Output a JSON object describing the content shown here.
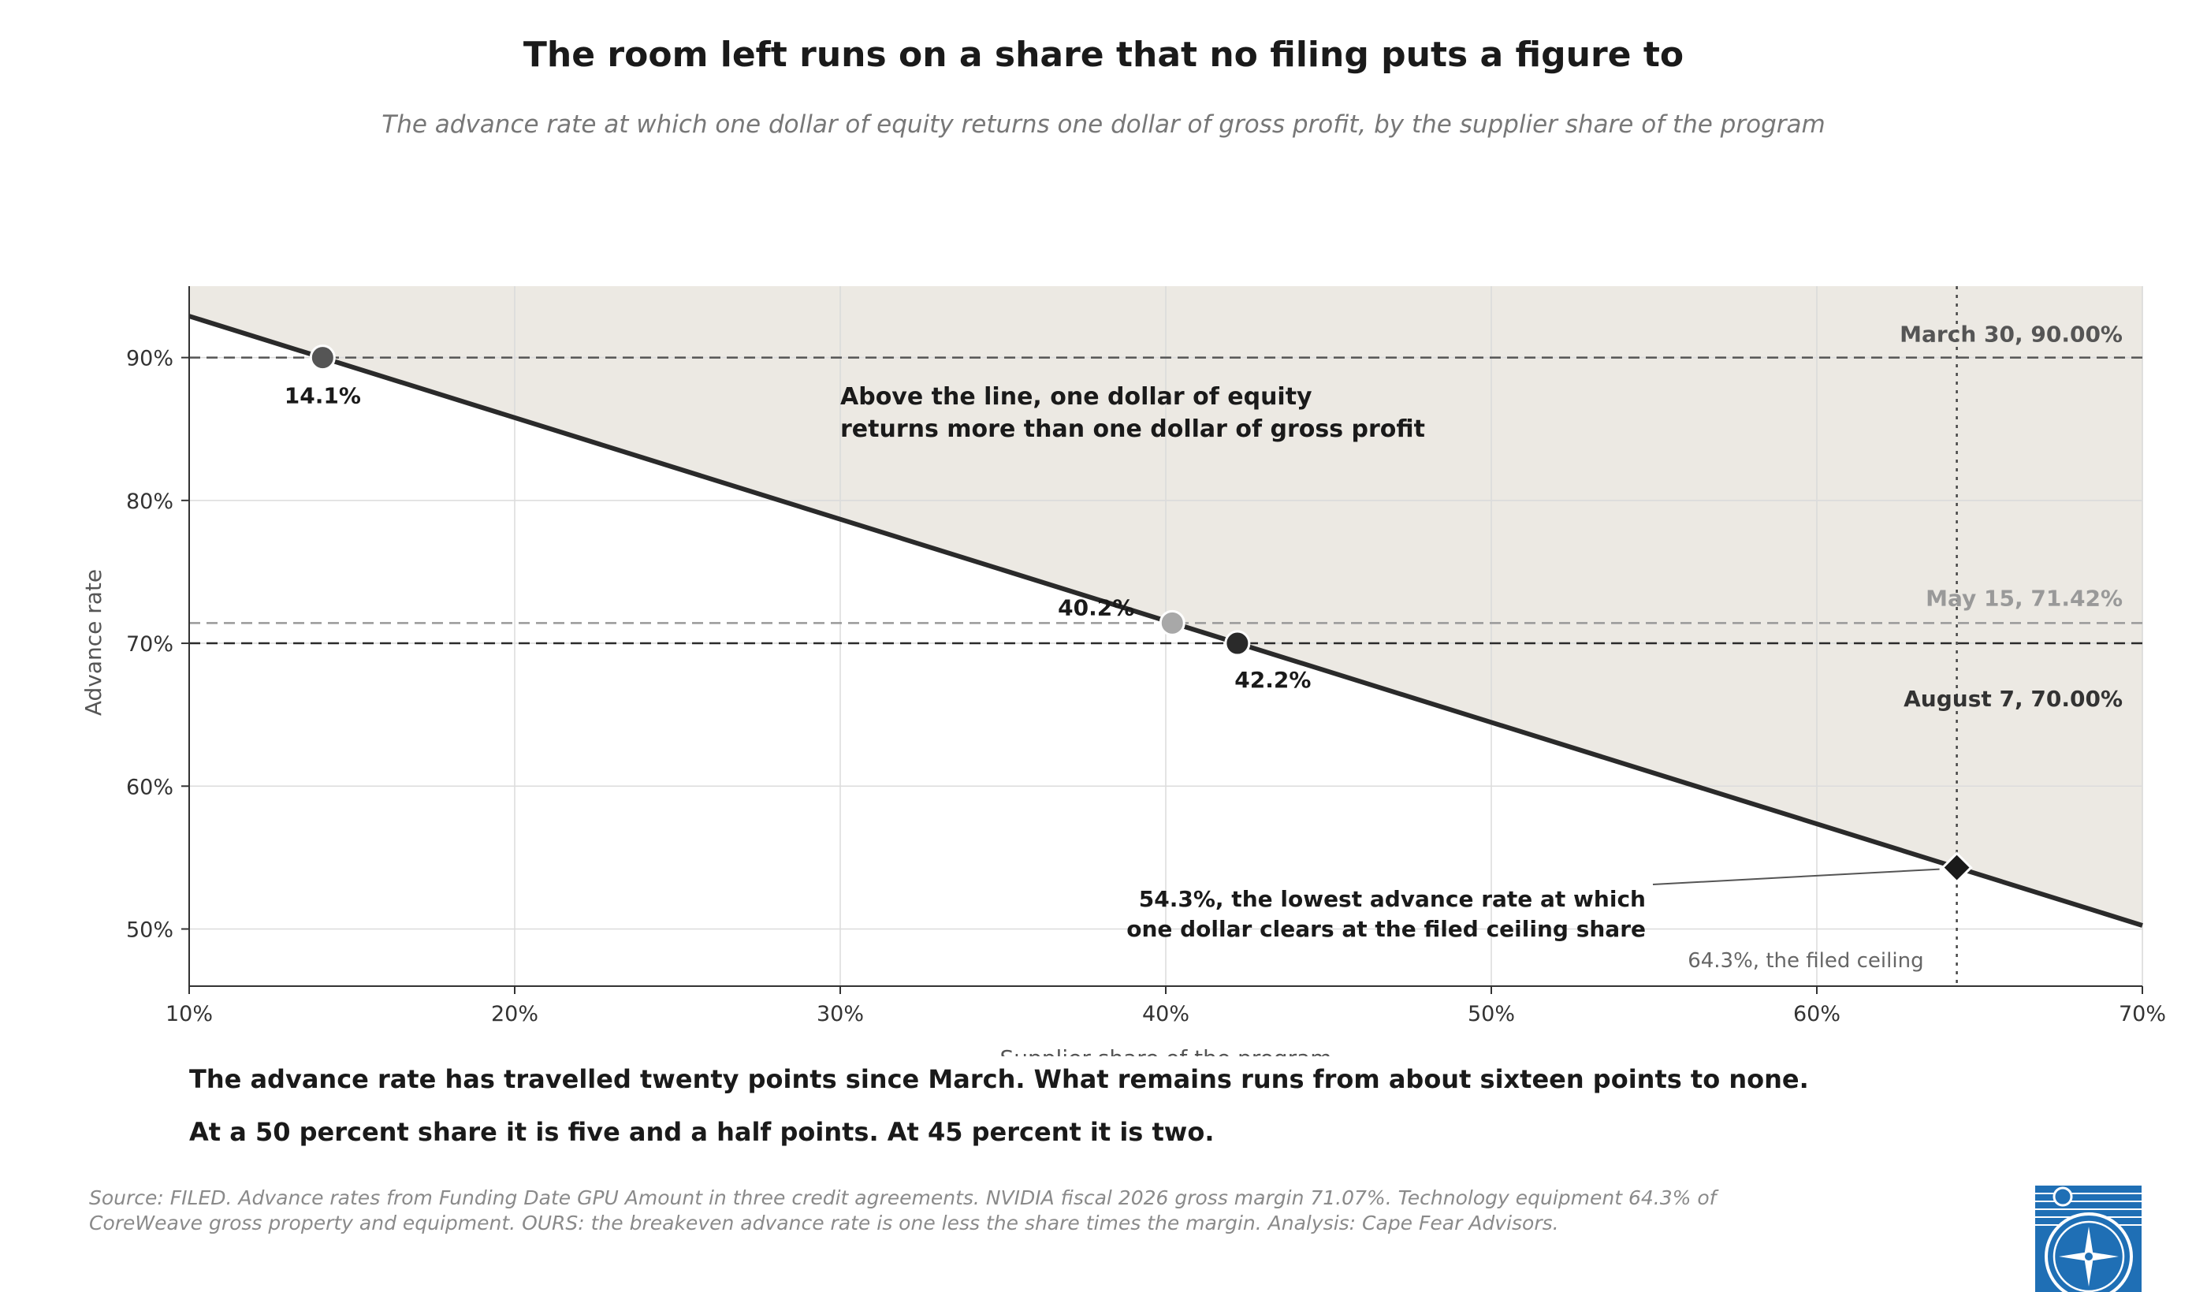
{
  "title": "The room left runs on a share that no filing puts a figure to",
  "subtitle": "The advance rate at which one dollar of equity returns one dollar of gross profit, by the supplier share of the program",
  "chart_data": {
    "type": "line",
    "xlabel": "Supplier share of the program",
    "ylabel": "Advance rate",
    "xlim": [
      10,
      70
    ],
    "ylim": [
      46,
      95
    ],
    "x_ticks": [
      10,
      20,
      30,
      40,
      50,
      60,
      70
    ],
    "x_tick_labels": [
      "10%",
      "20%",
      "30%",
      "40%",
      "50%",
      "60%",
      "70%"
    ],
    "y_ticks": [
      50,
      60,
      70,
      80,
      90
    ],
    "y_tick_labels": [
      "50%",
      "60%",
      "70%",
      "80%",
      "90%"
    ],
    "grid": true,
    "margin": 71.07,
    "series": [
      {
        "x": [
          10,
          70
        ],
        "y": [
          92.9,
          50.25
        ]
      }
    ],
    "shaded_region": "above the line",
    "reference_lines": [
      {
        "y": 90.0,
        "label": "March 30, 90.00%",
        "color": "#555555",
        "style": "dashed"
      },
      {
        "y": 71.42,
        "label": "May 15, 71.42%",
        "color": "#999999",
        "style": "dashed"
      },
      {
        "y": 70.0,
        "label": "August 7, 70.00%",
        "color": "#2a2a2a",
        "style": "dashed"
      }
    ],
    "vertical_line": {
      "x": 64.3,
      "label": "64.3%, the filed ceiling"
    },
    "points": [
      {
        "x": 14.1,
        "y": 90.0,
        "label": "14.1%",
        "color": "#555555",
        "shape": "circle"
      },
      {
        "x": 40.2,
        "y": 71.42,
        "label": "40.2%",
        "color": "#a8a8a8",
        "shape": "circle"
      },
      {
        "x": 42.2,
        "y": 70.0,
        "label": "42.2%",
        "color": "#2a2a2a",
        "shape": "circle"
      },
      {
        "x": 64.3,
        "y": 54.3,
        "label": "",
        "color": "#1a1a1a",
        "shape": "diamond"
      }
    ],
    "annotations": {
      "region_line1": "Above the line, one dollar of equity",
      "region_line2": "returns more than one dollar of gross profit",
      "diamond_line1": "54.3%, the lowest advance rate at which",
      "diamond_line2": "one dollar clears at the filed ceiling share"
    }
  },
  "caption": {
    "line1": "The advance rate has travelled twenty points since March. What remains runs from about sixteen points to none.",
    "line2": "At a 50 percent share it is five and a half points. At 45 percent it is two."
  },
  "source": {
    "line1": "Source: FILED. Advance rates from Funding Date GPU Amount in three credit agreements. NVIDIA fiscal 2026 gross margin 71.07%. Technology equipment 64.3% of",
    "line2": "CoreWeave gross property and equipment. OURS: the breakeven advance rate is one less the share times the margin. Analysis: Cape Fear Advisors."
  },
  "logo": {
    "icon": "compass-logo",
    "color": "#1f6fb5"
  }
}
